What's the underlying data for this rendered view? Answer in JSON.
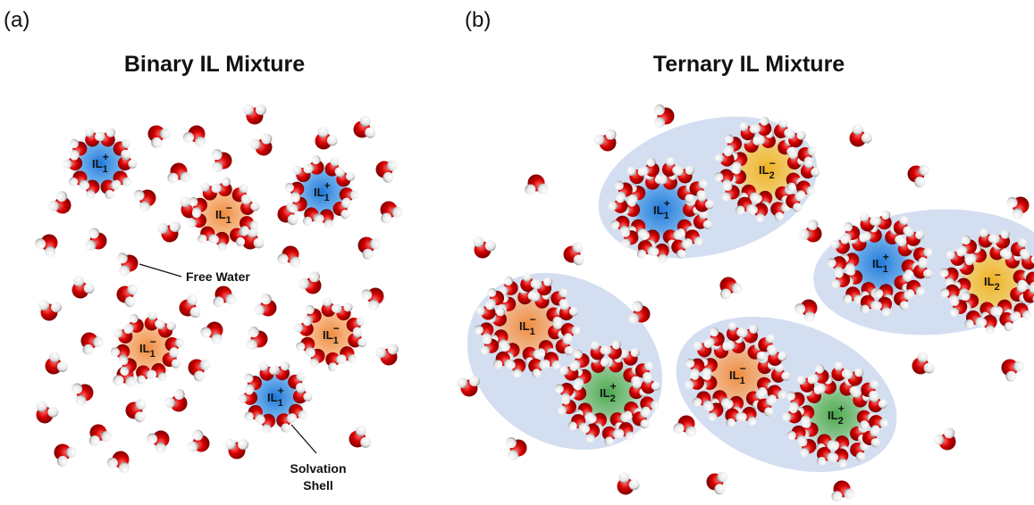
{
  "panel_a": {
    "letter": "(a)",
    "title": "Binary IL Mixture",
    "ions": [
      {
        "base": "IL",
        "sub": "1",
        "sup": "+"
      },
      {
        "base": "IL",
        "sub": "1",
        "sup": "−"
      },
      {
        "base": "IL",
        "sub": "1",
        "sup": "+"
      },
      {
        "base": "IL",
        "sub": "1",
        "sup": "−"
      },
      {
        "base": "IL",
        "sub": "1",
        "sup": "−"
      },
      {
        "base": "IL",
        "sub": "1",
        "sup": "+"
      }
    ],
    "annotations": {
      "free_water": "Free Water",
      "solvation_shell": [
        "Solvation",
        "Shell"
      ]
    }
  },
  "panel_b": {
    "letter": "(b)",
    "title": "Ternary IL Mixture",
    "ions": [
      {
        "base": "IL",
        "sub": "1",
        "sup": "+"
      },
      {
        "base": "IL",
        "sub": "2",
        "sup": "−"
      },
      {
        "base": "IL",
        "sub": "1",
        "sup": "+"
      },
      {
        "base": "IL",
        "sub": "2",
        "sup": "−"
      },
      {
        "base": "IL",
        "sub": "1",
        "sup": "−"
      },
      {
        "base": "IL",
        "sub": "2",
        "sup": "+"
      },
      {
        "base": "IL",
        "sub": "1",
        "sup": "−"
      },
      {
        "base": "IL",
        "sub": "2",
        "sup": "+"
      }
    ]
  }
}
